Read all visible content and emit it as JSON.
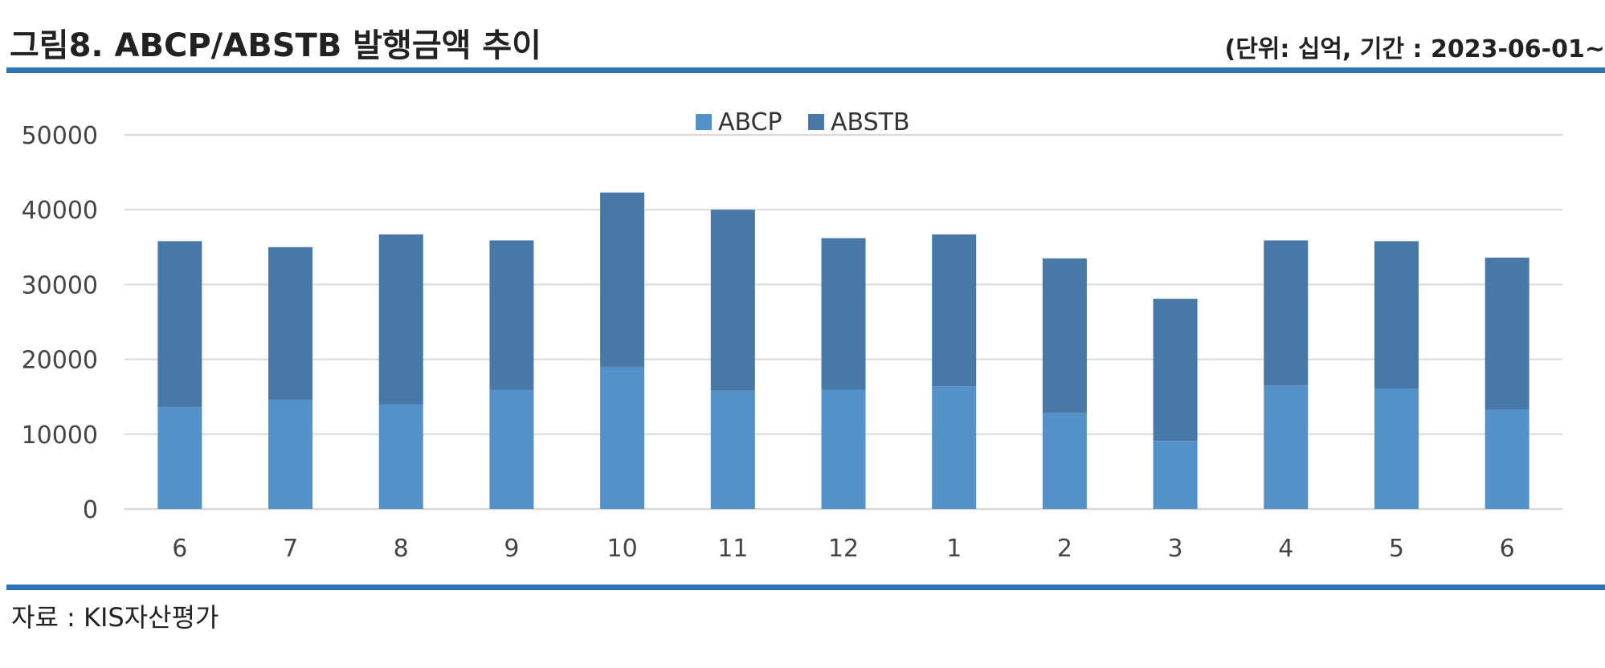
{
  "header": {
    "title": "그림8. ABCP/ABSTB 발행금액 추이",
    "unit": "(단위: 십억, 기간 : 2023-06-01~"
  },
  "footer": {
    "source": "자료 : KIS자산평가"
  },
  "colors": {
    "abcp": "#5591c9",
    "abstb": "#4778a8",
    "grid": "#d9d9d9",
    "rule": "#2e74b5"
  },
  "chart_data": {
    "type": "bar",
    "stacked": true,
    "categories": [
      "6",
      "7",
      "8",
      "9",
      "10",
      "11",
      "12",
      "1",
      "2",
      "3",
      "4",
      "5",
      "6"
    ],
    "series": [
      {
        "name": "ABCP",
        "values": [
          13600,
          14600,
          14000,
          15900,
          19000,
          15800,
          15900,
          16400,
          12800,
          9100,
          16500,
          16100,
          13300
        ]
      },
      {
        "name": "ABSTB",
        "values": [
          22200,
          20400,
          22700,
          20000,
          23300,
          24200,
          20300,
          20300,
          20700,
          19000,
          19400,
          19700,
          20300
        ]
      }
    ],
    "y_ticks": [
      "0",
      "10000",
      "20000",
      "30000",
      "40000",
      "50000"
    ],
    "ylim": [
      0,
      50000
    ],
    "grid": true,
    "legend": "top-center"
  }
}
